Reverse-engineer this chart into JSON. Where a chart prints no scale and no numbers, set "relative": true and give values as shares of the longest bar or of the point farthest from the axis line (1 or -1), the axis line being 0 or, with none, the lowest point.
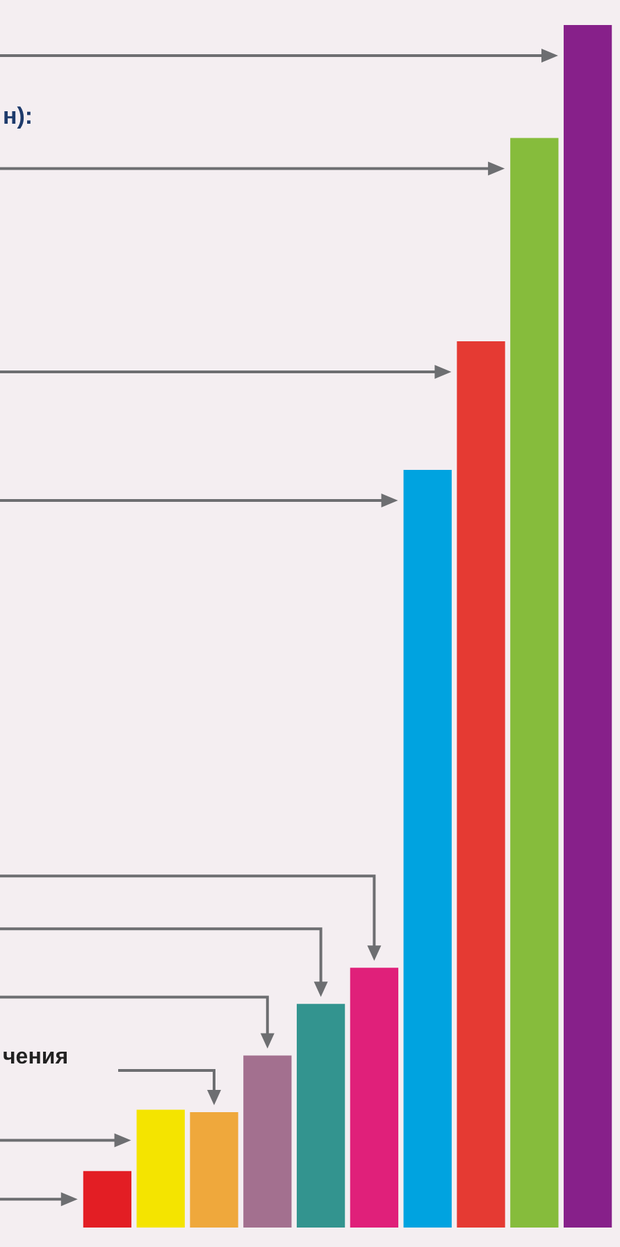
{
  "chart_data": {
    "type": "bar",
    "title": "н):",
    "annotations": [
      "чения"
    ],
    "relative": true,
    "categories": [
      null,
      null,
      null,
      null,
      null,
      null,
      null,
      null,
      null,
      null
    ],
    "values": [
      0.047,
      0.098,
      0.096,
      0.143,
      0.186,
      0.216,
      0.63,
      0.737,
      0.906,
      1
    ],
    "colors": [
      "#e31e24",
      "#f4e400",
      "#efa83c",
      "#a3708f",
      "#33948f",
      "#e0207a",
      "#00a3e0",
      "#e53a33",
      "#86bc3c",
      "#87208a"
    ],
    "legend": false
  }
}
